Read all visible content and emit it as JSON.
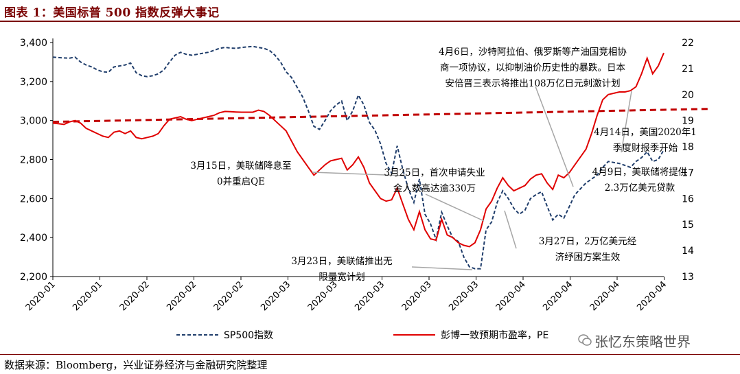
{
  "title": "图表 1：美国标普 500 指数反弹大事记",
  "source": "数据来源：Bloomberg，兴业证券经济与金融研究院整理",
  "watermark": "张忆东策略世界",
  "chart_data": {
    "type": "line",
    "y_left": {
      "min": 2200,
      "max": 3400,
      "ticks": [
        "2,200",
        "2,400",
        "2,600",
        "2,800",
        "3,000",
        "3,200",
        "3,400"
      ]
    },
    "y_right": {
      "min": 13,
      "max": 22,
      "ticks": [
        "13",
        "14",
        "15",
        "16",
        "17",
        "18",
        "19",
        "20",
        "21",
        "22"
      ]
    },
    "x_tick_labels": [
      "2020-01",
      "2020-01",
      "2020-02",
      "2020-02",
      "2020-02",
      "2020-03",
      "2020-03",
      "2020-03",
      "2020-03",
      "2020-03",
      "2020-04",
      "2020-04",
      "2020-04",
      "2020-04"
    ],
    "series": [
      {
        "name": "SP500指数",
        "axis": "left",
        "color": "#1f3d6b",
        "style": "dashed",
        "values": [
          [
            0,
            3325
          ],
          [
            1,
            3323
          ],
          [
            2,
            3321
          ],
          [
            3,
            3320
          ],
          [
            4,
            3325
          ],
          [
            5,
            3300
          ],
          [
            6,
            3285
          ],
          [
            7,
            3275
          ],
          [
            8,
            3260
          ],
          [
            9,
            3250
          ],
          [
            10,
            3248
          ],
          [
            11,
            3275
          ],
          [
            12,
            3280
          ],
          [
            13,
            3285
          ],
          [
            14,
            3295
          ],
          [
            15,
            3245
          ],
          [
            16,
            3230
          ],
          [
            17,
            3225
          ],
          [
            18,
            3230
          ],
          [
            19,
            3240
          ],
          [
            20,
            3260
          ],
          [
            21,
            3300
          ],
          [
            22,
            3335
          ],
          [
            23,
            3350
          ],
          [
            24,
            3340
          ],
          [
            25,
            3335
          ],
          [
            26,
            3340
          ],
          [
            27,
            3345
          ],
          [
            28,
            3350
          ],
          [
            29,
            3360
          ],
          [
            30,
            3370
          ],
          [
            31,
            3375
          ],
          [
            32,
            3372
          ],
          [
            33,
            3370
          ],
          [
            34,
            3375
          ],
          [
            35,
            3378
          ],
          [
            36,
            3380
          ],
          [
            37,
            3375
          ],
          [
            38,
            3370
          ],
          [
            39,
            3360
          ],
          [
            40,
            3335
          ],
          [
            41,
            3300
          ],
          [
            42,
            3250
          ],
          [
            43,
            3220
          ],
          [
            44,
            3170
          ],
          [
            45,
            3120
          ],
          [
            46,
            3050
          ],
          [
            47,
            2970
          ],
          [
            48,
            2955
          ],
          [
            49,
            3000
          ],
          [
            50,
            3050
          ],
          [
            51,
            3080
          ],
          [
            52,
            3100
          ],
          [
            53,
            3000
          ],
          [
            54,
            3050
          ],
          [
            55,
            3130
          ],
          [
            56,
            3080
          ],
          [
            57,
            2990
          ],
          [
            58,
            2950
          ],
          [
            59,
            2880
          ],
          [
            60,
            2780
          ],
          [
            61,
            2730
          ],
          [
            62,
            2870
          ],
          [
            63,
            2750
          ],
          [
            64,
            2650
          ],
          [
            65,
            2580
          ],
          [
            66,
            2700
          ],
          [
            67,
            2520
          ],
          [
            68,
            2470
          ],
          [
            69,
            2390
          ],
          [
            70,
            2530
          ],
          [
            71,
            2460
          ],
          [
            72,
            2400
          ],
          [
            73,
            2380
          ],
          [
            74,
            2300
          ],
          [
            75,
            2250
          ],
          [
            76,
            2240
          ],
          [
            77,
            2240
          ],
          [
            78,
            2440
          ],
          [
            79,
            2480
          ],
          [
            80,
            2580
          ],
          [
            81,
            2640
          ],
          [
            82,
            2600
          ],
          [
            83,
            2550
          ],
          [
            84,
            2520
          ],
          [
            85,
            2540
          ],
          [
            86,
            2600
          ],
          [
            87,
            2620
          ],
          [
            88,
            2635
          ],
          [
            89,
            2560
          ],
          [
            90,
            2490
          ],
          [
            91,
            2520
          ],
          [
            92,
            2500
          ],
          [
            93,
            2560
          ],
          [
            94,
            2620
          ],
          [
            95,
            2650
          ],
          [
            96,
            2680
          ],
          [
            97,
            2700
          ],
          [
            98,
            2720
          ],
          [
            99,
            2760
          ],
          [
            100,
            2790
          ],
          [
            101,
            2785
          ],
          [
            102,
            2780
          ],
          [
            103,
            2770
          ],
          [
            104,
            2760
          ],
          [
            105,
            2790
          ],
          [
            106,
            2810
          ],
          [
            107,
            2840
          ],
          [
            108,
            2790
          ],
          [
            109,
            2800
          ],
          [
            110,
            2850
          ]
        ]
      },
      {
        "name": "彭博一致预期市盈率，PE",
        "axis": "right",
        "color": "#e00000",
        "style": "solid",
        "values": [
          [
            0,
            18.9
          ],
          [
            1,
            18.88
          ],
          [
            2,
            18.85
          ],
          [
            3,
            18.95
          ],
          [
            4,
            19.0
          ],
          [
            5,
            18.9
          ],
          [
            6,
            18.7
          ],
          [
            7,
            18.6
          ],
          [
            8,
            18.5
          ],
          [
            9,
            18.4
          ],
          [
            10,
            18.35
          ],
          [
            11,
            18.55
          ],
          [
            12,
            18.6
          ],
          [
            13,
            18.5
          ],
          [
            14,
            18.6
          ],
          [
            15,
            18.35
          ],
          [
            16,
            18.3
          ],
          [
            17,
            18.35
          ],
          [
            18,
            18.4
          ],
          [
            19,
            18.5
          ],
          [
            20,
            18.8
          ],
          [
            21,
            19.05
          ],
          [
            22,
            19.1
          ],
          [
            23,
            19.15
          ],
          [
            24,
            19.05
          ],
          [
            25,
            19.0
          ],
          [
            26,
            19.05
          ],
          [
            27,
            19.1
          ],
          [
            28,
            19.15
          ],
          [
            29,
            19.2
          ],
          [
            30,
            19.3
          ],
          [
            31,
            19.35
          ],
          [
            32,
            19.34
          ],
          [
            33,
            19.33
          ],
          [
            34,
            19.32
          ],
          [
            35,
            19.32
          ],
          [
            36,
            19.32
          ],
          [
            37,
            19.4
          ],
          [
            38,
            19.35
          ],
          [
            39,
            19.2
          ],
          [
            40,
            19.0
          ],
          [
            41,
            18.8
          ],
          [
            42,
            18.6
          ],
          [
            43,
            18.2
          ],
          [
            44,
            17.8
          ],
          [
            45,
            17.5
          ],
          [
            46,
            17.2
          ],
          [
            47,
            16.9
          ],
          [
            48,
            17.1
          ],
          [
            49,
            17.3
          ],
          [
            50,
            17.45
          ],
          [
            51,
            17.5
          ],
          [
            52,
            17.55
          ],
          [
            53,
            17.1
          ],
          [
            54,
            17.3
          ],
          [
            55,
            17.6
          ],
          [
            56,
            17.2
          ],
          [
            57,
            16.6
          ],
          [
            58,
            16.3
          ],
          [
            59,
            16.0
          ],
          [
            60,
            15.9
          ],
          [
            61,
            15.95
          ],
          [
            62,
            16.4
          ],
          [
            63,
            15.8
          ],
          [
            64,
            15.2
          ],
          [
            65,
            14.8
          ],
          [
            66,
            15.5
          ],
          [
            67,
            14.8
          ],
          [
            68,
            14.45
          ],
          [
            69,
            14.4
          ],
          [
            70,
            15.2
          ],
          [
            71,
            14.6
          ],
          [
            72,
            14.5
          ],
          [
            73,
            14.3
          ],
          [
            74,
            14.2
          ],
          [
            75,
            14.15
          ],
          [
            76,
            14.3
          ],
          [
            77,
            14.8
          ],
          [
            78,
            15.6
          ],
          [
            79,
            15.9
          ],
          [
            80,
            16.4
          ],
          [
            81,
            16.8
          ],
          [
            82,
            16.5
          ],
          [
            83,
            16.3
          ],
          [
            84,
            16.4
          ],
          [
            85,
            16.5
          ],
          [
            86,
            16.75
          ],
          [
            87,
            16.9
          ],
          [
            88,
            16.95
          ],
          [
            89,
            16.6
          ],
          [
            90,
            16.35
          ],
          [
            91,
            16.9
          ],
          [
            92,
            16.8
          ],
          [
            93,
            17.0
          ],
          [
            94,
            17.3
          ],
          [
            95,
            17.6
          ],
          [
            96,
            17.9
          ],
          [
            97,
            18.5
          ],
          [
            98,
            19.2
          ],
          [
            99,
            19.8
          ],
          [
            100,
            20.0
          ],
          [
            101,
            20.05
          ],
          [
            102,
            20.1
          ],
          [
            103,
            20.1
          ],
          [
            104,
            20.15
          ],
          [
            105,
            20.3
          ],
          [
            106,
            20.8
          ],
          [
            107,
            21.4
          ],
          [
            108,
            20.8
          ],
          [
            109,
            21.1
          ],
          [
            110,
            21.6
          ]
        ]
      },
      {
        "name": "",
        "axis": "right",
        "color": "#c00000",
        "style": "dashed-trend",
        "values": [
          [
            0,
            18.95
          ],
          [
            130,
            19.4
          ]
        ]
      }
    ],
    "annotations": [
      {
        "lines": [
          "4月6日，沙特阿拉伯、俄罗斯等产油国竞相协",
          "商一项协议，以抑制油价历史性的暴跌。日本",
          "安倍晋三表示将推出108万亿日元刺激计划"
        ]
      },
      {
        "lines": [
          "4月14日，美国2020年1",
          "季度财报季开始"
        ]
      },
      {
        "lines": [
          "4月9日，美联储将提供",
          "2.3万亿美元贷款"
        ]
      },
      {
        "lines": [
          "3月15日，美联储降息至",
          "0并重启QE"
        ]
      },
      {
        "lines": [
          "3月25日，首次申请失业",
          "金人数高达逾330万"
        ]
      },
      {
        "lines": [
          "3月27日，2万亿美元经",
          "济纾困方案生效"
        ]
      },
      {
        "lines": [
          "3月23日，美联储推出无",
          "限量宽计划"
        ]
      }
    ]
  }
}
